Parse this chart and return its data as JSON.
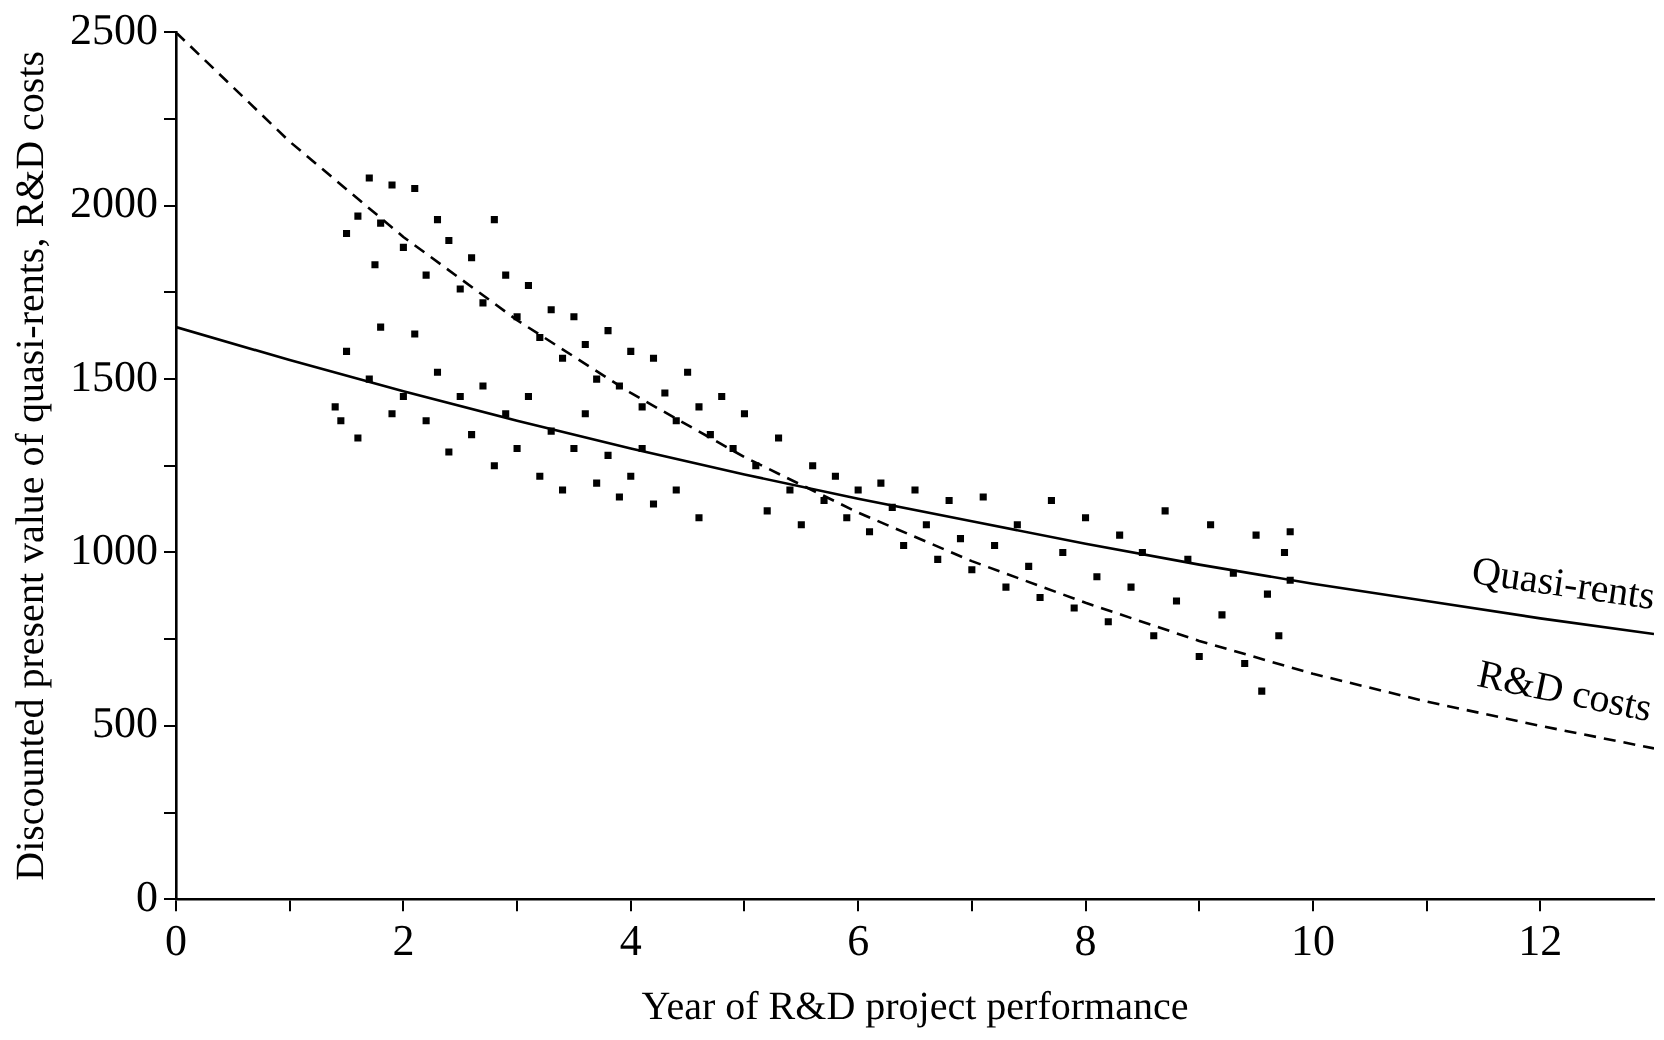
{
  "chart_data": {
    "type": "scatter",
    "xlabel": "Year of R&D project performance",
    "ylabel": "Discounted present value of quasi-rents, R&D costs",
    "xlim": [
      0,
      13
    ],
    "ylim": [
      0,
      2500
    ],
    "xticks": [
      0,
      {
        "value": 1,
        "label": null
      },
      2,
      {
        "value": 3,
        "label": null
      },
      4,
      {
        "value": 5,
        "label": null
      },
      6,
      {
        "value": 7,
        "label": null
      },
      8,
      {
        "value": 9,
        "label": null
      },
      10,
      {
        "value": 11,
        "label": null
      },
      12
    ],
    "yticks": [
      0,
      {
        "value": 250,
        "label": null
      },
      500,
      {
        "value": 750,
        "label": null
      },
      1000,
      {
        "value": 1250,
        "label": null
      },
      1500,
      {
        "value": 1750,
        "label": null
      },
      2000,
      {
        "value": 2250,
        "label": null
      },
      2500
    ],
    "grid": false,
    "legend": false,
    "series": [
      {
        "color": "#000000",
        "marker": "square",
        "x": [
          1.5,
          1.6,
          1.7,
          1.75,
          1.8,
          1.9,
          2.0,
          2.1,
          2.2,
          2.3,
          2.4,
          2.5,
          2.6,
          2.7,
          2.8,
          2.9,
          3.0,
          3.1,
          3.2,
          3.3,
          3.4,
          3.5,
          3.6,
          3.7,
          3.8,
          3.9,
          4.0,
          4.1,
          4.2,
          4.3,
          4.4,
          4.5,
          4.6,
          4.7,
          4.8,
          4.9,
          5.0,
          1.4,
          1.45,
          1.5,
          1.6,
          1.7,
          1.8,
          1.9,
          2.0,
          2.1,
          2.2,
          2.3,
          2.4,
          2.5,
          2.6,
          2.7,
          2.8,
          2.9,
          3.0,
          3.1,
          3.2,
          3.3,
          3.4,
          3.5,
          3.6,
          3.7,
          3.8,
          3.9,
          4.0,
          4.1,
          4.2,
          4.4,
          4.6,
          5.1,
          5.2,
          5.3,
          5.4,
          5.5,
          5.6,
          5.7,
          5.8,
          5.9,
          6.0,
          6.1,
          6.2,
          6.3,
          6.4,
          6.5,
          6.6,
          6.7,
          6.8,
          6.9,
          7.0,
          7.1,
          7.2,
          7.3,
          7.4,
          7.5,
          7.6,
          7.7,
          7.8,
          7.9,
          8.0,
          8.1,
          8.2,
          8.3,
          8.4,
          8.5,
          8.6,
          8.7,
          8.8,
          8.9,
          9.0,
          9.1,
          9.2,
          9.3,
          9.4,
          9.5,
          9.55,
          9.6,
          9.7,
          9.75,
          9.8,
          9.8
        ],
        "values": [
          1920,
          1970,
          2080,
          1830,
          1950,
          2060,
          1880,
          2050,
          1800,
          1960,
          1900,
          1760,
          1850,
          1720,
          1960,
          1800,
          1680,
          1770,
          1620,
          1700,
          1560,
          1680,
          1600,
          1500,
          1640,
          1480,
          1580,
          1420,
          1560,
          1460,
          1380,
          1520,
          1420,
          1340,
          1450,
          1300,
          1400,
          1420,
          1380,
          1580,
          1330,
          1500,
          1650,
          1400,
          1450,
          1630,
          1380,
          1520,
          1290,
          1450,
          1340,
          1480,
          1250,
          1400,
          1300,
          1450,
          1220,
          1350,
          1180,
          1300,
          1400,
          1200,
          1280,
          1160,
          1220,
          1300,
          1140,
          1180,
          1100,
          1250,
          1120,
          1330,
          1180,
          1080,
          1250,
          1150,
          1220,
          1100,
          1180,
          1060,
          1200,
          1130,
          1020,
          1180,
          1080,
          980,
          1150,
          1040,
          950,
          1160,
          1020,
          900,
          1080,
          960,
          870,
          1150,
          1000,
          840,
          1100,
          930,
          800,
          1050,
          900,
          1000,
          760,
          1120,
          860,
          980,
          700,
          1080,
          820,
          940,
          680,
          1050,
          600,
          880,
          760,
          1000,
          920,
          1060
        ]
      },
      {
        "type": "line",
        "name": "Quasi-rents",
        "color": "#000000",
        "marker": "none",
        "line_style": "solid",
        "x": [
          0,
          1,
          2,
          3,
          4,
          5,
          6,
          7,
          8,
          9,
          10,
          11,
          12,
          13
        ],
        "values": [
          1650,
          1555,
          1465,
          1380,
          1300,
          1225,
          1155,
          1090,
          1025,
          965,
          910,
          860,
          810,
          765
        ]
      },
      {
        "type": "line",
        "name": "R&D costs",
        "color": "#000000",
        "marker": "none",
        "line_style": "dashed",
        "x": [
          0,
          1,
          2,
          3,
          4,
          5,
          6,
          7,
          8,
          9,
          10,
          11,
          12,
          13
        ],
        "values": [
          2500,
          2185,
          1910,
          1670,
          1460,
          1275,
          1115,
          975,
          855,
          745,
          650,
          570,
          500,
          435
        ]
      }
    ]
  }
}
